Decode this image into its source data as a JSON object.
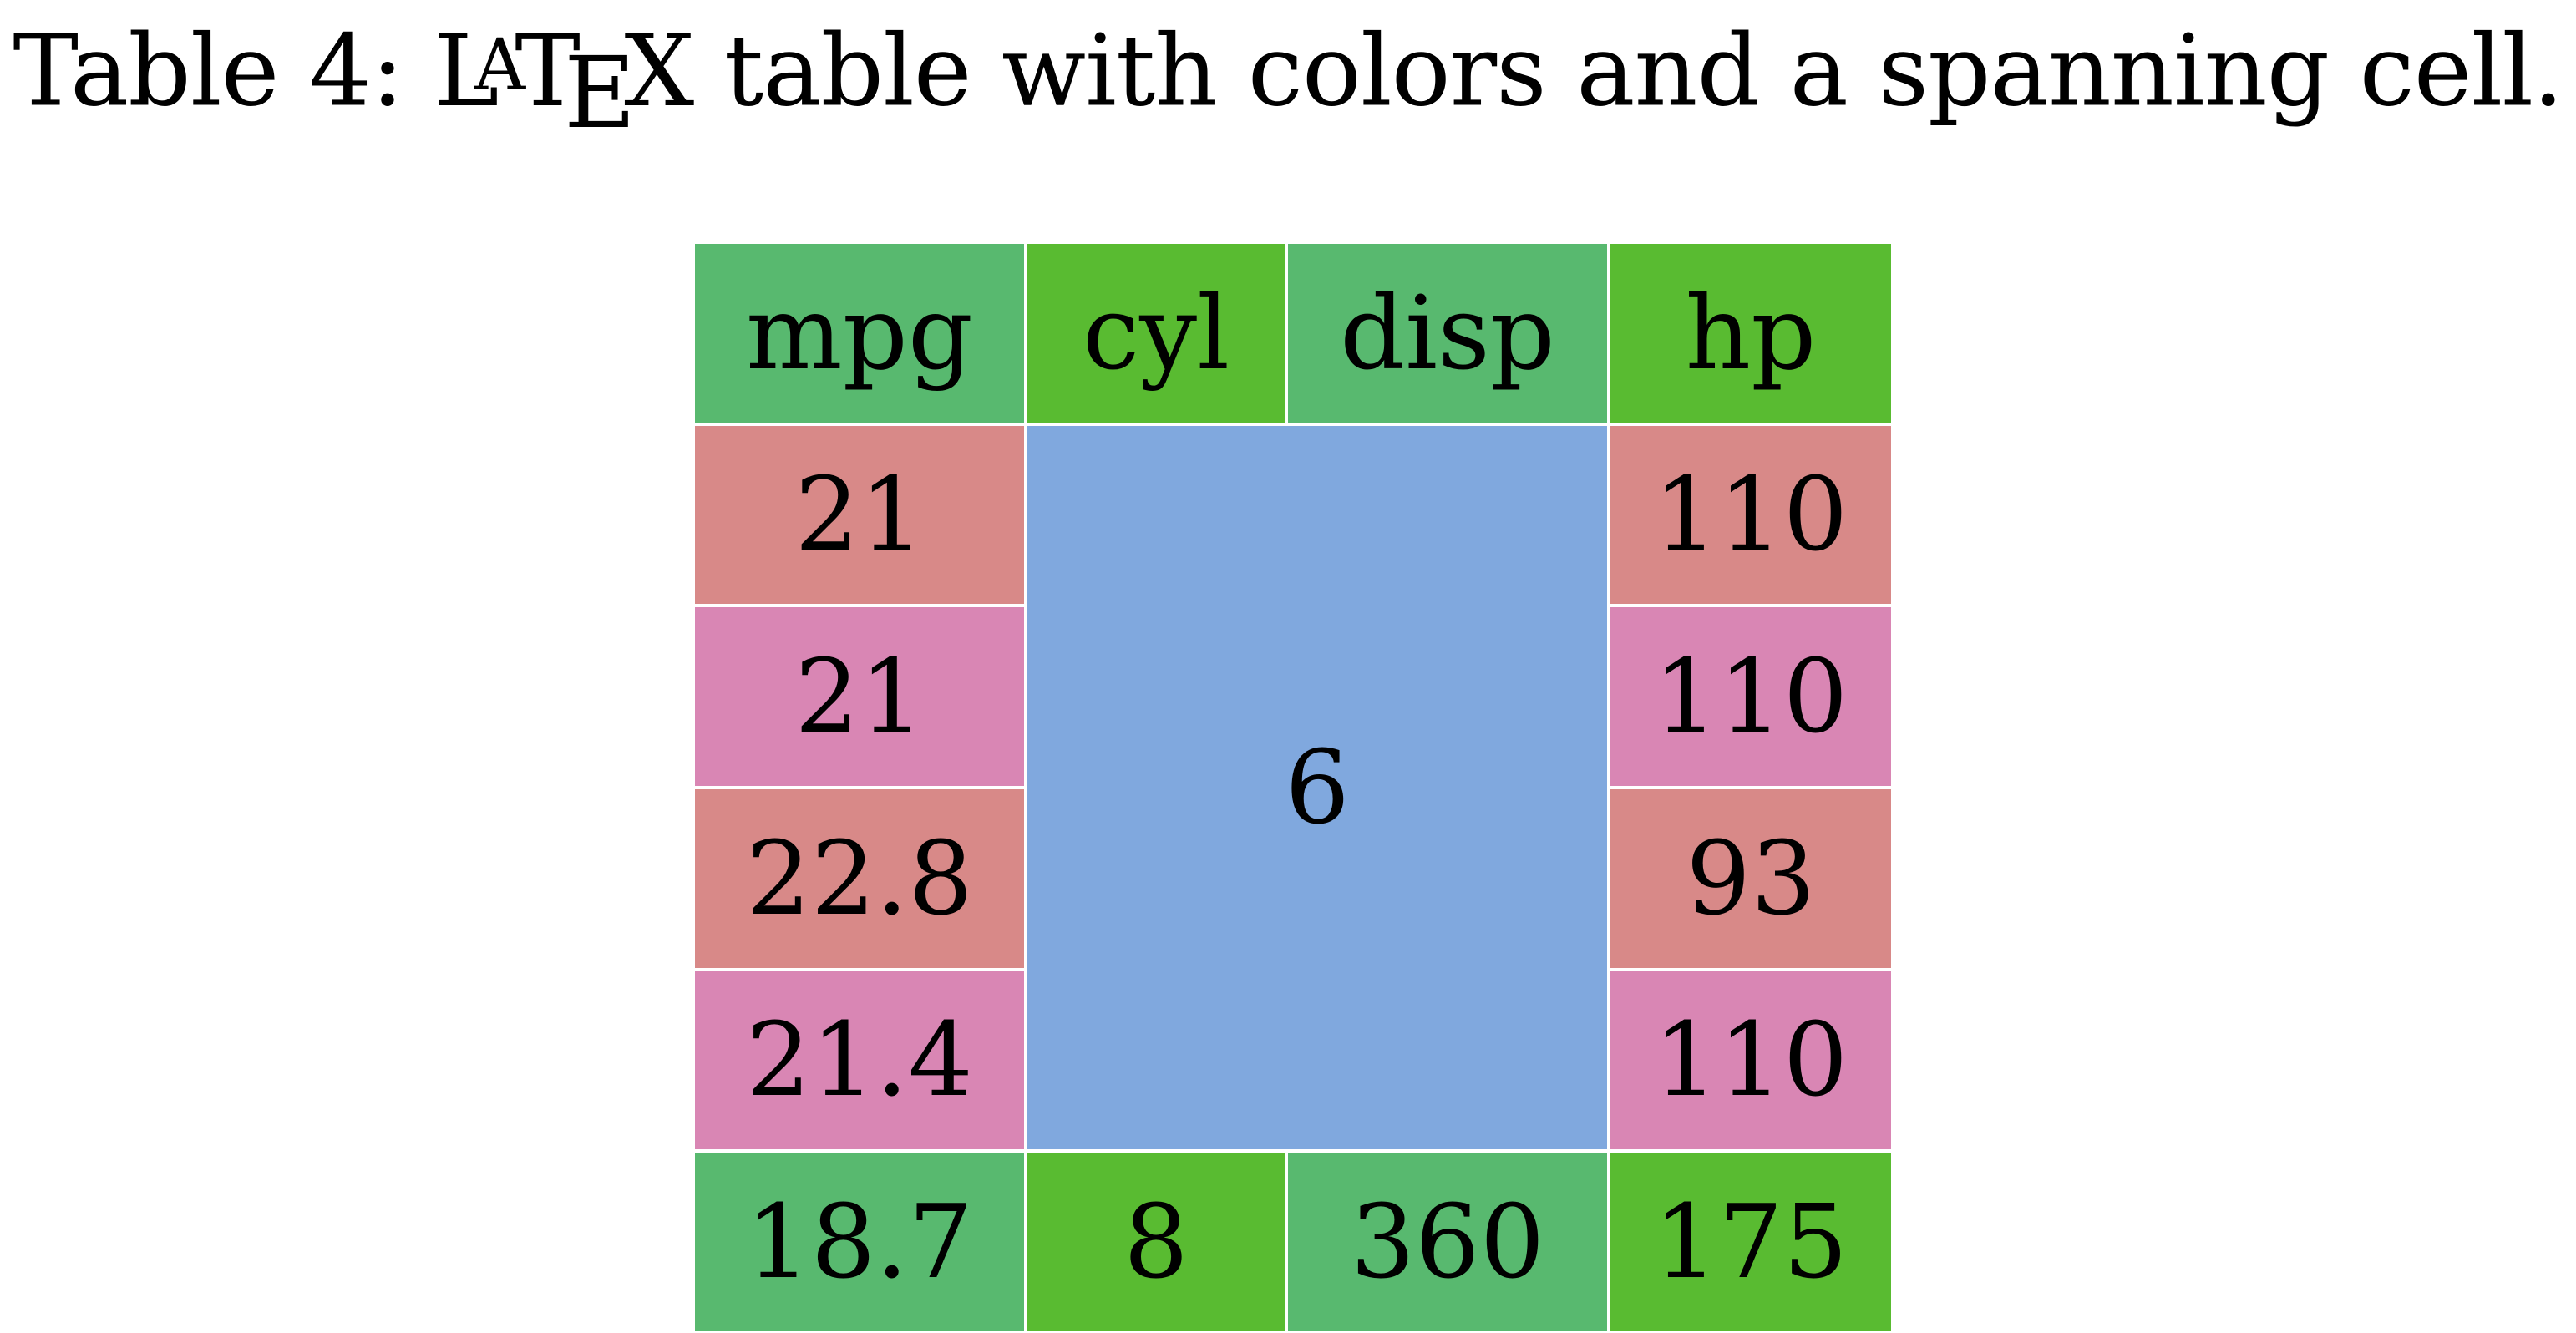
{
  "caption": {
    "prefix": "Table 4: ",
    "logo": "LATEX",
    "suffix": " table with colors and a spanning cell."
  },
  "colors": {
    "header_green_a": "#58b96f",
    "header_green_b": "#59bb31",
    "row_red": "#d88988",
    "row_pink": "#d986b4",
    "span_blue": "#80a8de"
  },
  "table": {
    "headers": [
      "mpg",
      "cyl",
      "disp",
      "hp"
    ],
    "rows": [
      {
        "mpg": "21",
        "hp": "110"
      },
      {
        "mpg": "21",
        "hp": "110"
      },
      {
        "mpg": "22.8",
        "hp": "93"
      },
      {
        "mpg": "21.4",
        "hp": "110"
      }
    ],
    "span_cell": "6",
    "last_row": [
      "18.7",
      "8",
      "360",
      "175"
    ]
  }
}
